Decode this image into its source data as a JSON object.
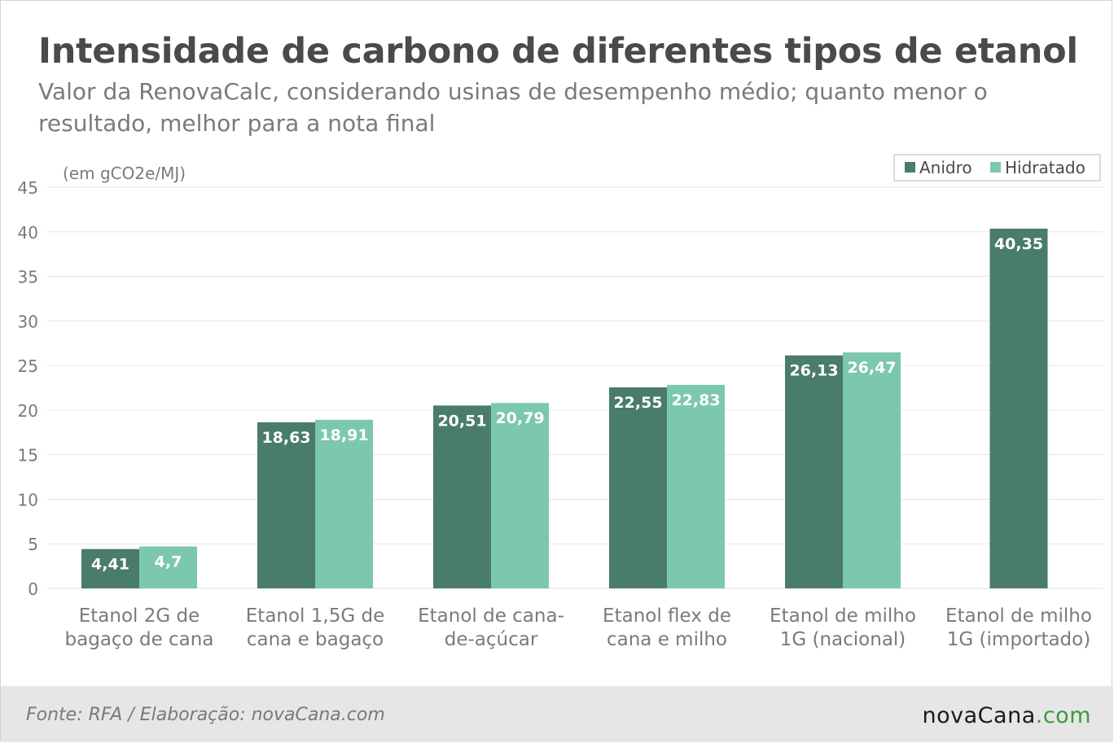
{
  "header": {
    "title": "Intensidade de carbono de diferentes tipos de etanol",
    "subtitle": "Valor da RenovaCalc, considerando usinas de desempenho médio; quanto menor o resultado, melhor para a nota final"
  },
  "footer": {
    "source": "Fonte: RFA / Elaboração: novaCana.com",
    "logo_main": "novaCana",
    "logo_suffix": ".com"
  },
  "colors": {
    "anidro": "#4a7c6a",
    "hidratado": "#7cc7b0",
    "axis_text": "#7a7a7a",
    "grid": "#e6e6e6"
  },
  "chart_data": {
    "type": "bar",
    "unit_label": "(em gCO2e/MJ)",
    "categories": [
      [
        "Etanol 2G de",
        "bagaço de cana"
      ],
      [
        "Etanol 1,5G de",
        "cana e bagaço"
      ],
      [
        "Etanol de cana-",
        "de-açúcar"
      ],
      [
        "Etanol flex de",
        "cana e milho"
      ],
      [
        "Etanol de milho",
        "1G (nacional)"
      ],
      [
        "Etanol de milho",
        "1G (importado)"
      ]
    ],
    "series": [
      {
        "name": "Anidro",
        "values": [
          4.41,
          18.63,
          20.51,
          22.55,
          26.13,
          40.35
        ],
        "labels": [
          "4,41",
          "18,63",
          "20,51",
          "22,55",
          "26,13",
          "40,35"
        ]
      },
      {
        "name": "Hidratado",
        "values": [
          4.7,
          18.91,
          20.79,
          22.83,
          26.47,
          null
        ],
        "labels": [
          "4,7",
          "18,91",
          "20,79",
          "22,83",
          "26,47",
          ""
        ]
      }
    ],
    "ylim": [
      0,
      45
    ],
    "yticks": [
      0,
      5,
      10,
      15,
      20,
      25,
      30,
      35,
      40,
      45
    ],
    "grid": true,
    "legend_position": "top-right"
  }
}
